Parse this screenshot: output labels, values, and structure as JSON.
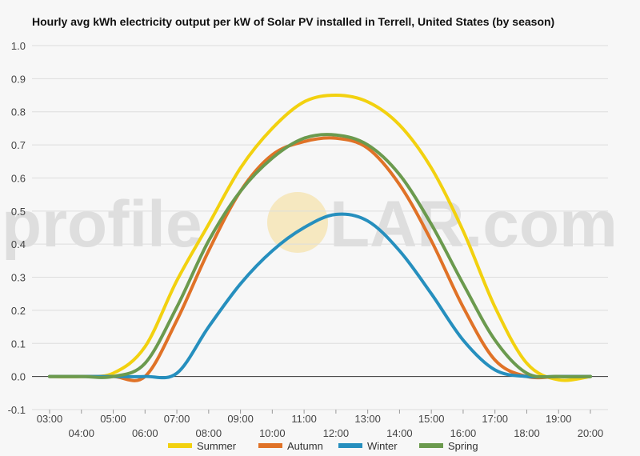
{
  "watermark": {
    "left": "profile",
    "right": "LAR.com",
    "sun_color": "#f5d98a"
  },
  "chart_data": {
    "type": "line",
    "title": "Hourly avg kWh electricity output per kW of Solar PV installed in Terrell, United States (by season)",
    "xlabel": "",
    "ylabel": "",
    "x": [
      3,
      4,
      5,
      6,
      7,
      8,
      9,
      10,
      11,
      12,
      13,
      14,
      15,
      16,
      17,
      18,
      19,
      20
    ],
    "x_tick_labels": [
      "03:00",
      "04:00",
      "05:00",
      "06:00",
      "07:00",
      "08:00",
      "09:00",
      "10:00",
      "11:00",
      "12:00",
      "13:00",
      "14:00",
      "15:00",
      "16:00",
      "17:00",
      "18:00",
      "19:00",
      "20:00"
    ],
    "ylim": [
      -0.1,
      1.0
    ],
    "y_ticks": [
      "-0.1",
      "0.0",
      "0.1",
      "0.2",
      "0.3",
      "0.4",
      "0.5",
      "0.6",
      "0.7",
      "0.8",
      "0.9",
      "1.0"
    ],
    "grid": true,
    "legend_position": "bottom",
    "series": [
      {
        "name": "Summer",
        "color": "#f2d10f",
        "values": [
          0.0,
          0.0,
          0.01,
          0.09,
          0.29,
          0.46,
          0.63,
          0.75,
          0.83,
          0.85,
          0.83,
          0.76,
          0.63,
          0.44,
          0.21,
          0.04,
          -0.01,
          0.0
        ]
      },
      {
        "name": "Autumn",
        "color": "#e07227",
        "values": [
          0.0,
          0.0,
          0.0,
          0.0,
          0.17,
          0.38,
          0.56,
          0.67,
          0.71,
          0.72,
          0.69,
          0.58,
          0.41,
          0.21,
          0.05,
          0.0,
          0.0,
          0.0
        ]
      },
      {
        "name": "Winter",
        "color": "#268fbe",
        "values": [
          0.0,
          0.0,
          0.0,
          0.0,
          0.01,
          0.15,
          0.28,
          0.38,
          0.45,
          0.49,
          0.47,
          0.38,
          0.25,
          0.11,
          0.02,
          0.0,
          0.0,
          0.0
        ]
      },
      {
        "name": "Spring",
        "color": "#6b9a4e",
        "values": [
          0.0,
          0.0,
          0.0,
          0.04,
          0.21,
          0.41,
          0.56,
          0.66,
          0.72,
          0.73,
          0.7,
          0.61,
          0.46,
          0.28,
          0.11,
          0.01,
          0.0,
          0.0
        ]
      }
    ]
  }
}
